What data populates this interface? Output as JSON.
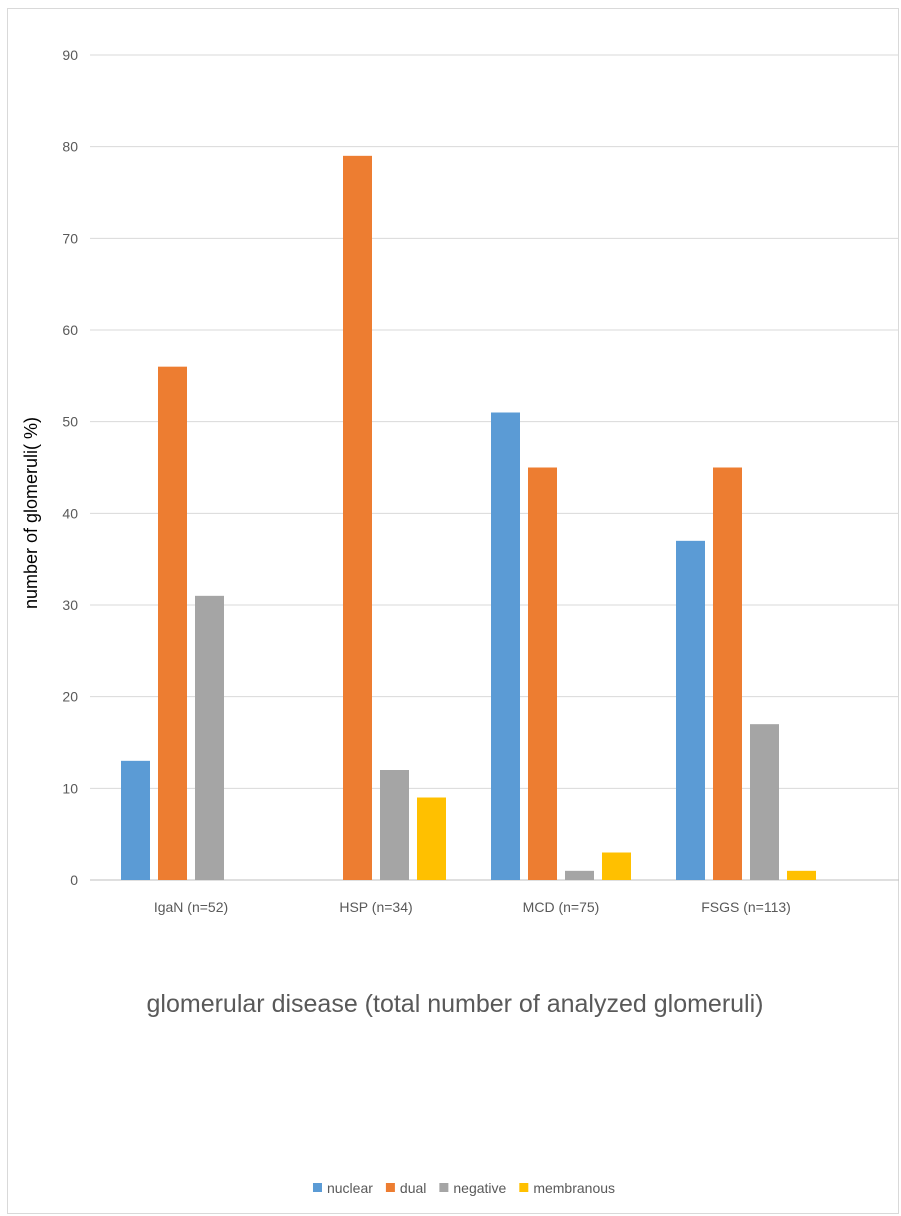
{
  "chart_data": {
    "type": "bar",
    "categories": [
      "IgaN (n=52)",
      "HSP (n=34)",
      "MCD (n=75)",
      "FSGS (n=113)"
    ],
    "series": [
      {
        "name": "nuclear",
        "values": [
          13,
          0,
          51,
          37
        ],
        "color": "#5b9bd5"
      },
      {
        "name": "dual",
        "values": [
          56,
          79,
          45,
          45
        ],
        "color": "#ed7d31"
      },
      {
        "name": "negative",
        "values": [
          31,
          12,
          1,
          17
        ],
        "color": "#a5a5a5"
      },
      {
        "name": "membranous",
        "values": [
          0,
          9,
          3,
          1
        ],
        "color": "#ffc000"
      }
    ],
    "xlabel": "glomerular disease (total number of analyzed glomeruli)",
    "ylabel": "number of glomeruli( %)",
    "ylim": [
      0,
      90
    ],
    "yticks": [
      0,
      10,
      20,
      30,
      40,
      50,
      60,
      70,
      80,
      90
    ],
    "grid": true,
    "legend_position": "bottom"
  }
}
